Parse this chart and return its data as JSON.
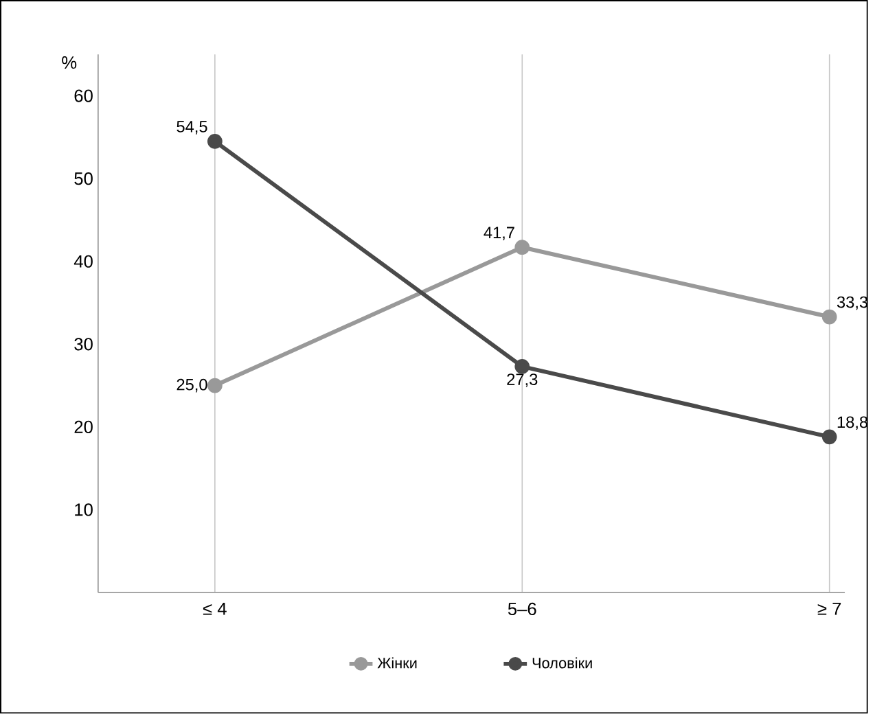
{
  "chart_data": {
    "type": "line",
    "ylabel": "%",
    "categories": [
      "≤ 4",
      "5–6",
      "≥ 7"
    ],
    "series": [
      {
        "name": "Жінки",
        "color": "#999999",
        "values": [
          25.0,
          41.7,
          33.3
        ],
        "value_labels": [
          "25,0",
          "41,7",
          "33,3"
        ]
      },
      {
        "name": "Чоловіки",
        "color": "#4a4a4a",
        "values": [
          54.5,
          27.3,
          18.8
        ],
        "value_labels": [
          "54,5",
          "27,3",
          "18,8"
        ]
      }
    ],
    "ylim": [
      0,
      65
    ],
    "yticks": [
      10,
      20,
      30,
      40,
      50,
      60
    ],
    "grid": "x",
    "legend": "bottom",
    "marker": "circle",
    "line_style": "solid"
  }
}
